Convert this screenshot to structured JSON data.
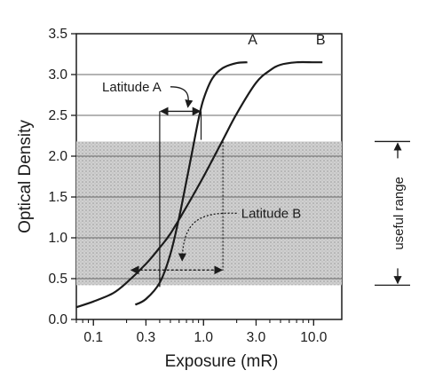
{
  "chart_data": {
    "type": "line",
    "title": "",
    "xlabel": "Exposure (mR)",
    "ylabel": "Optical Density",
    "x_scale": "log",
    "xlim": [
      0.07,
      18
    ],
    "ylim": [
      0,
      3.5
    ],
    "x_ticks": [
      {
        "value": 0.1,
        "label": "0.1"
      },
      {
        "value": 0.3,
        "label": "0.3"
      },
      {
        "value": 1.0,
        "label": "1.0"
      },
      {
        "value": 3.0,
        "label": "3.0"
      },
      {
        "value": 10.0,
        "label": "10.0"
      }
    ],
    "y_ticks": [
      {
        "value": 0.0,
        "label": "0.0"
      },
      {
        "value": 0.5,
        "label": "0.5"
      },
      {
        "value": 1.0,
        "label": "1.0"
      },
      {
        "value": 1.5,
        "label": "1.5"
      },
      {
        "value": 2.0,
        "label": "2.0"
      },
      {
        "value": 2.5,
        "label": "2.5"
      },
      {
        "value": 3.0,
        "label": "3.0"
      },
      {
        "value": 3.5,
        "label": "3.5"
      }
    ],
    "grid": {
      "horizontal": true,
      "vertical": false
    },
    "series": [
      {
        "name": "A",
        "x": [
          0.24,
          0.3,
          0.4,
          0.5,
          0.6,
          0.7,
          0.8,
          0.9,
          1.0,
          1.2,
          1.5,
          2.0,
          2.5
        ],
        "y": [
          0.18,
          0.25,
          0.45,
          0.8,
          1.25,
          1.7,
          2.1,
          2.45,
          2.7,
          2.95,
          3.08,
          3.14,
          3.15
        ]
      },
      {
        "name": "B",
        "x": [
          0.07,
          0.1,
          0.15,
          0.2,
          0.3,
          0.4,
          0.5,
          0.7,
          1.0,
          1.5,
          2.0,
          3.0,
          4.0,
          5.0,
          7.0,
          10.0,
          12.0
        ],
        "y": [
          0.15,
          0.22,
          0.32,
          0.45,
          0.68,
          0.88,
          1.05,
          1.38,
          1.75,
          2.2,
          2.52,
          2.9,
          3.05,
          3.12,
          3.15,
          3.15,
          3.15
        ]
      }
    ],
    "annotations": {
      "useful_range": {
        "label": "useful range",
        "y_low": 0.42,
        "y_high": 2.18
      },
      "latitude_a": {
        "label": "Latitude A",
        "x_low": 0.4,
        "x_high": 0.95
      },
      "latitude_b": {
        "label": "Latitude B",
        "x_low": 0.4,
        "x_high": 1.5
      }
    }
  }
}
